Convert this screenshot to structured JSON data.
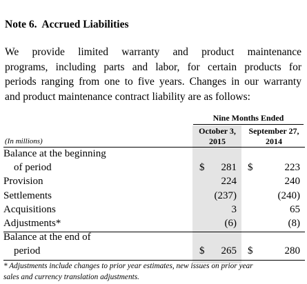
{
  "header": {
    "title": "Note 6.  Accrued Liabilities"
  },
  "paragraph": [
    "We provide limited warranty and product maintenance",
    "programs, including parts and labor, for certain products for",
    "periods ranging from one to five years.  Changes in our warranty",
    "and product maintenance contract liability are as follows:"
  ],
  "table": {
    "period_header": "Nine Months Ended",
    "units": "(In millions)",
    "columns": [
      [
        "October 3,",
        "2015"
      ],
      [
        "September 27,",
        "2014"
      ]
    ],
    "rows": [
      {
        "label": "Balance at the beginning"
      },
      {
        "label": "of period",
        "indent": true,
        "cells": [
          "$",
          "281",
          "$",
          "223"
        ]
      },
      {
        "label": "Provision",
        "cells": [
          "224",
          "240"
        ]
      },
      {
        "label": "Settlements",
        "cells": [
          "(237)",
          "(240)"
        ]
      },
      {
        "label": "Acquisitions",
        "cells": [
          "3",
          "65"
        ]
      },
      {
        "label": "Adjustments*",
        "cells": [
          "(6)",
          "(8)"
        ]
      },
      {
        "label": "Balance at the end of"
      },
      {
        "label": "period",
        "indent": true,
        "cells": [
          "$",
          "265",
          "$",
          "280"
        ]
      }
    ]
  },
  "footnote": [
    "* Adjustments include changes to prior year estimates, new issues on prior year",
    "sales and currency translation adjustments."
  ]
}
